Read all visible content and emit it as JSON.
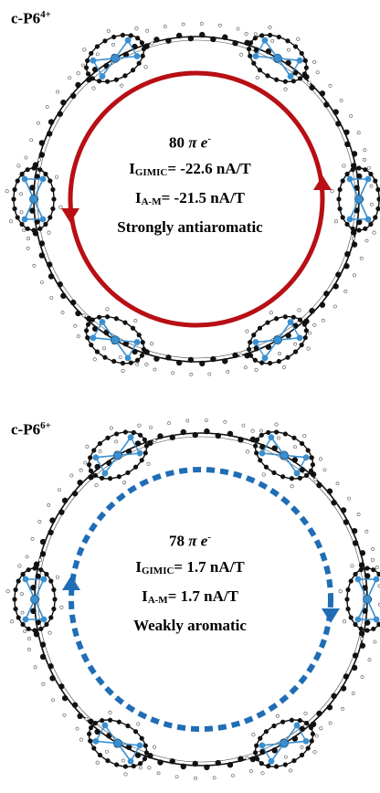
{
  "panels": [
    {
      "label_main": "c-P6",
      "label_sup": "4+",
      "electrons_num": "80",
      "electrons_sym": "π e",
      "electrons_sup": "-",
      "gimic_I": "I",
      "gimic_sub": "GIMIC",
      "gimic_val": "= -22.6 nA/T",
      "am_I": "I",
      "am_sub": "A-M",
      "am_val": "= -21.5 nA/T",
      "character": "Strongly antiaromatic",
      "current_color": "#b80f14",
      "current_style": "solid"
    },
    {
      "label_main": "c-P6",
      "label_sup": "6+",
      "electrons_num": "78",
      "electrons_sym": "π e",
      "electrons_sup": "-",
      "gimic_I": "I",
      "gimic_sub": "GIMIC",
      "gimic_val": "= 1.7 nA/T",
      "am_I": "I",
      "am_sub": "A-M",
      "am_val": "= 1.7 nA/T",
      "character": "Weakly aromatic",
      "current_color": "#1f6db5",
      "current_style": "dashed"
    }
  ]
}
